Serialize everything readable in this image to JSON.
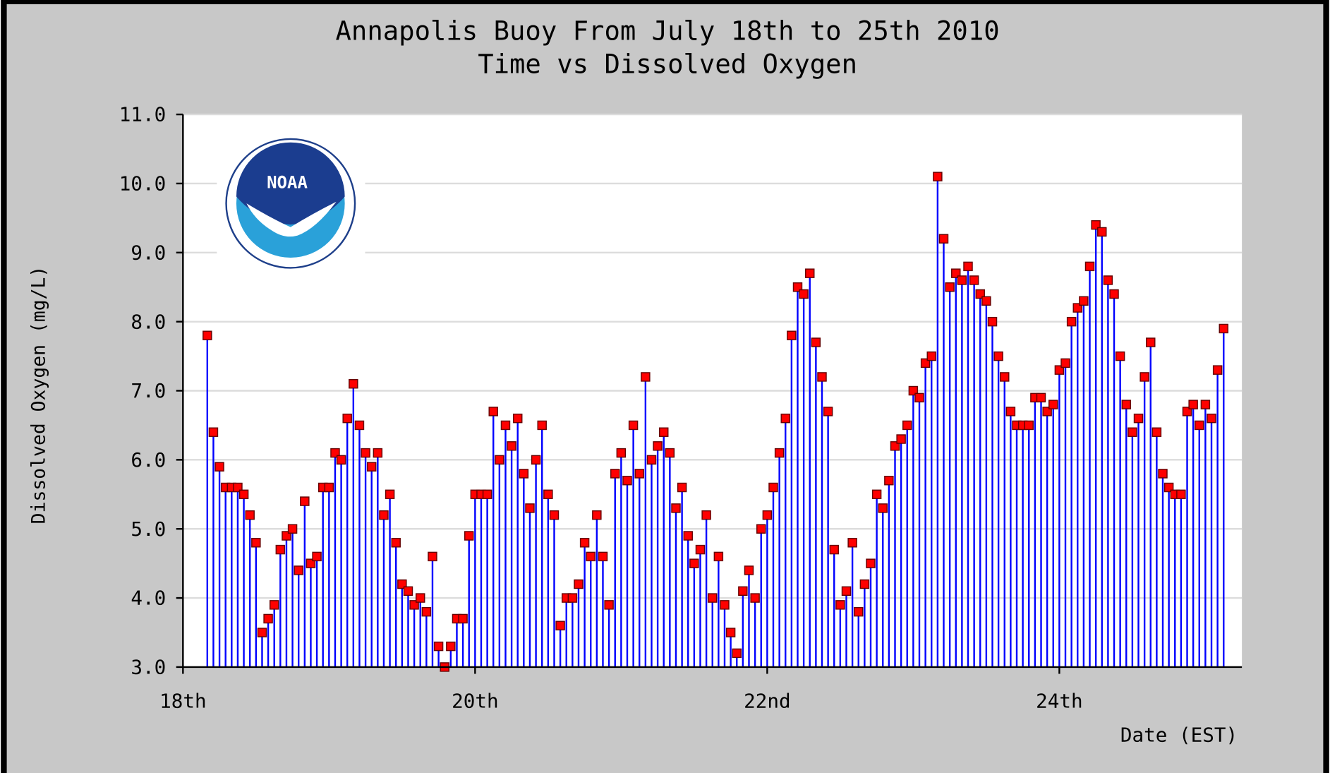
{
  "chart_data": {
    "type": "stem",
    "title": "Annapolis Buoy From July 18th to 25th 2010",
    "subtitle": "Time vs Dissolved Oxygen",
    "y_label": "Dissolved Oxygen (mg/L)",
    "x_label": "Date (EST)",
    "logo_text": "NOAA",
    "stem_color": "#0000ff",
    "marker_color": "#ff0000",
    "grid": true,
    "xlim": [
      0,
      174
    ],
    "xticks": [
      {
        "value": 0,
        "label": "18th"
      },
      {
        "value": 48,
        "label": "20th"
      },
      {
        "value": 96,
        "label": "22nd"
      },
      {
        "value": 144,
        "label": "24th"
      }
    ],
    "ylim": [
      3,
      11
    ],
    "yticks": [
      {
        "value": 3,
        "label": "3.0"
      },
      {
        "value": 4,
        "label": "4.0"
      },
      {
        "value": 5,
        "label": "5.0"
      },
      {
        "value": 6,
        "label": "6.0"
      },
      {
        "value": 7,
        "label": "7.0"
      },
      {
        "value": 8,
        "label": "8.0"
      },
      {
        "value": 9,
        "label": "9.0"
      },
      {
        "value": 10,
        "label": "10.0"
      },
      {
        "value": 11,
        "label": "11.0"
      }
    ],
    "x": [
      4,
      5,
      6,
      7,
      8,
      9,
      10,
      11,
      12,
      13,
      14,
      15,
      16,
      17,
      18,
      19,
      20,
      21,
      22,
      23,
      24,
      25,
      26,
      27,
      28,
      29,
      30,
      31,
      32,
      33,
      34,
      35,
      36,
      37,
      38,
      39,
      40,
      41,
      42,
      43,
      44,
      45,
      46,
      47,
      48,
      49,
      50,
      51,
      52,
      53,
      54,
      55,
      56,
      57,
      58,
      59,
      60,
      61,
      62,
      63,
      64,
      65,
      66,
      67,
      68,
      69,
      70,
      71,
      72,
      73,
      74,
      75,
      76,
      77,
      78,
      79,
      80,
      81,
      82,
      83,
      84,
      85,
      86,
      87,
      88,
      89,
      90,
      91,
      92,
      93,
      94,
      95,
      96,
      97,
      98,
      99,
      100,
      101,
      102,
      103,
      104,
      105,
      106,
      107,
      108,
      109,
      110,
      111,
      112,
      113,
      114,
      115,
      116,
      117,
      118,
      119,
      120,
      121,
      122,
      123,
      124,
      125,
      126,
      127,
      128,
      129,
      130,
      131,
      132,
      133,
      134,
      135,
      136,
      137,
      138,
      139,
      140,
      141,
      142,
      143,
      144,
      145,
      146,
      147,
      148,
      149,
      150,
      151,
      152,
      153,
      154,
      155,
      156,
      157,
      158,
      159,
      160,
      161,
      162,
      163,
      164,
      165,
      166,
      167,
      168,
      169,
      170,
      171
    ],
    "values": [
      7.8,
      6.4,
      5.9,
      5.6,
      5.6,
      5.6,
      5.5,
      5.2,
      4.8,
      3.5,
      3.7,
      3.9,
      4.7,
      4.9,
      5.0,
      4.4,
      5.4,
      4.5,
      4.6,
      5.6,
      5.6,
      6.1,
      6.0,
      6.6,
      7.1,
      6.5,
      6.1,
      5.9,
      6.1,
      5.2,
      5.5,
      4.8,
      4.2,
      4.1,
      3.9,
      4.0,
      3.8,
      4.6,
      3.3,
      3.0,
      3.3,
      3.7,
      3.7,
      4.9,
      5.5,
      5.5,
      5.5,
      6.7,
      6.0,
      6.5,
      6.2,
      6.6,
      5.8,
      5.3,
      6.0,
      6.5,
      5.5,
      5.2,
      3.6,
      4.0,
      4.0,
      4.2,
      4.8,
      4.6,
      5.2,
      4.6,
      3.9,
      5.8,
      6.1,
      5.7,
      6.5,
      5.8,
      7.2,
      6.0,
      6.2,
      6.4,
      6.1,
      5.3,
      5.6,
      4.9,
      4.5,
      4.7,
      5.2,
      4.0,
      4.6,
      3.9,
      3.5,
      3.2,
      4.1,
      4.4,
      4.0,
      5.0,
      5.2,
      5.6,
      6.1,
      6.6,
      7.8,
      8.5,
      8.4,
      8.7,
      7.7,
      7.2,
      6.7,
      4.7,
      3.9,
      4.1,
      4.8,
      3.8,
      4.2,
      4.5,
      5.5,
      5.3,
      5.7,
      6.2,
      6.3,
      6.5,
      7.0,
      6.9,
      7.4,
      7.5,
      10.1,
      9.2,
      8.5,
      8.7,
      8.6,
      8.8,
      8.6,
      8.4,
      8.3,
      8.0,
      7.5,
      7.2,
      6.7,
      6.5,
      6.5,
      6.5,
      6.9,
      6.9,
      6.7,
      6.8,
      7.3,
      7.4,
      8.0,
      8.2,
      8.3,
      8.8,
      9.4,
      9.3,
      8.6,
      8.4,
      7.5,
      6.8,
      6.4,
      6.6,
      7.2,
      7.7,
      6.4,
      5.8,
      5.6,
      5.5,
      5.5,
      6.7,
      6.8,
      6.5,
      6.8,
      6.6,
      7.3,
      7.9
    ]
  }
}
